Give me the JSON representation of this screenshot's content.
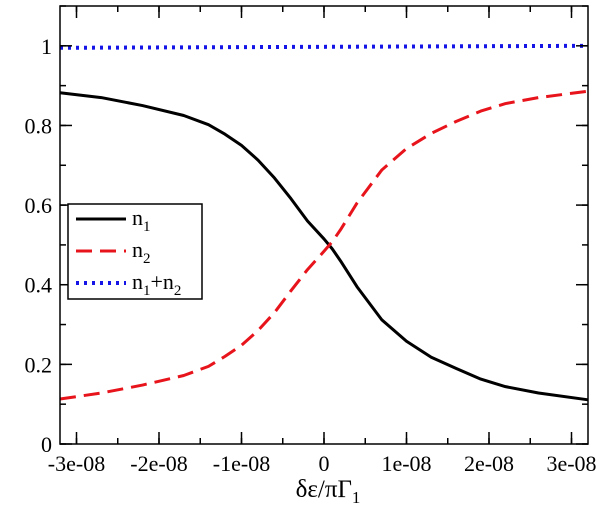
{
  "chart_data": {
    "type": "line",
    "title": "",
    "xlabel": {
      "base": "δε/πΓ",
      "sub": "1"
    },
    "ylabel": "",
    "xlim": [
      -3.2e-08,
      3.2e-08
    ],
    "ylim": [
      0,
      1.1
    ],
    "x_ticks": [
      -3e-08,
      -2e-08,
      -1e-08,
      0,
      1e-08,
      2e-08,
      3e-08
    ],
    "x_tick_labels": [
      "-3e-08",
      "-2e-08",
      "-1e-08",
      "0",
      "1e-08",
      "2e-08",
      "3e-08"
    ],
    "y_ticks": [
      0,
      0.2,
      0.4,
      0.6,
      0.8,
      1
    ],
    "y_tick_labels": [
      "0",
      "0.2",
      "0.4",
      "0.6",
      "0.8",
      "1"
    ],
    "grid": false,
    "legend_position": "middle-left",
    "series": [
      {
        "name": "n1",
        "legend": {
          "base": "n",
          "sub": "1"
        },
        "color": "#000000",
        "style": "solid",
        "x": [
          -3.2e-08,
          -2.7e-08,
          -2.2e-08,
          -1.7e-08,
          -1.4e-08,
          -1.2e-08,
          -1e-08,
          -8e-09,
          -6e-09,
          -4e-09,
          -2e-09,
          0,
          1e-09,
          2e-09,
          4e-09,
          7e-09,
          1e-08,
          1.3e-08,
          1.6e-08,
          1.9e-08,
          2.2e-08,
          2.6e-08,
          3.2e-08
        ],
        "y": [
          0.882,
          0.87,
          0.85,
          0.825,
          0.802,
          0.778,
          0.75,
          0.713,
          0.668,
          0.616,
          0.56,
          0.515,
          0.49,
          0.46,
          0.395,
          0.312,
          0.258,
          0.218,
          0.19,
          0.163,
          0.144,
          0.128,
          0.111
        ]
      },
      {
        "name": "n2",
        "legend": {
          "base": "n",
          "sub": "2"
        },
        "color": "#e8141c",
        "style": "dashed",
        "x": [
          -3.2e-08,
          -2.7e-08,
          -2.2e-08,
          -1.7e-08,
          -1.4e-08,
          -1.2e-08,
          -1e-08,
          -8e-09,
          -6e-09,
          -4e-09,
          -2e-09,
          0,
          1e-09,
          2e-09,
          4e-09,
          7e-09,
          1e-08,
          1.3e-08,
          1.6e-08,
          1.9e-08,
          2.2e-08,
          2.6e-08,
          3.2e-08
        ],
        "y": [
          0.113,
          0.128,
          0.148,
          0.172,
          0.195,
          0.22,
          0.248,
          0.285,
          0.33,
          0.385,
          0.438,
          0.484,
          0.508,
          0.538,
          0.605,
          0.688,
          0.742,
          0.78,
          0.81,
          0.836,
          0.855,
          0.87,
          0.886
        ]
      },
      {
        "name": "n1+n2",
        "legend": {
          "parts": [
            "n",
            "1",
            "+n",
            "2"
          ]
        },
        "color": "#1414e6",
        "style": "dotted",
        "x": [
          -3.2e-08,
          3.2e-08
        ],
        "y": [
          0.995,
          1.0
        ]
      }
    ]
  }
}
